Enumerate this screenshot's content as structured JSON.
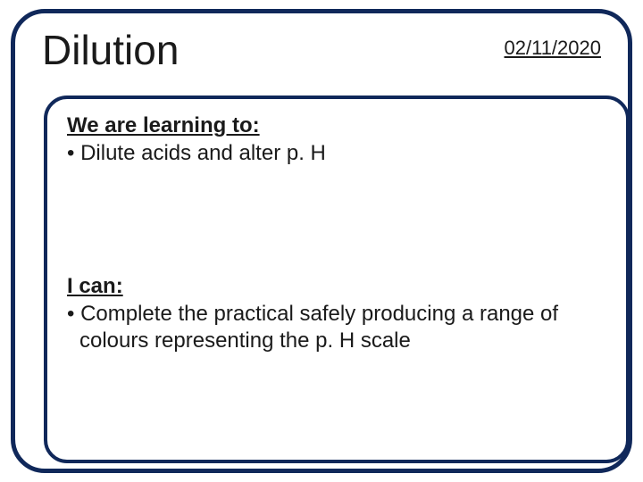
{
  "header": {
    "title": "Dilution",
    "date": "02/11/2020"
  },
  "content": {
    "learning_heading": "We are learning to:",
    "learning_bullet": "• Dilute acids and alter p. H",
    "can_heading": "I can:",
    "can_bullet": "• Complete the practical safely producing a range of colours representing the p. H scale"
  },
  "style": {
    "outer_border_color": "#10285a",
    "inner_border_color": "#10285a",
    "outer_border_width": 5,
    "inner_border_width": 4,
    "outer_radius": 38,
    "inner_radius": 26,
    "title_fontsize": 46,
    "date_fontsize": 22,
    "body_fontsize": 24,
    "text_color": "#1a1a1a",
    "background_color": "#ffffff",
    "font_family": "Comic Sans MS"
  }
}
